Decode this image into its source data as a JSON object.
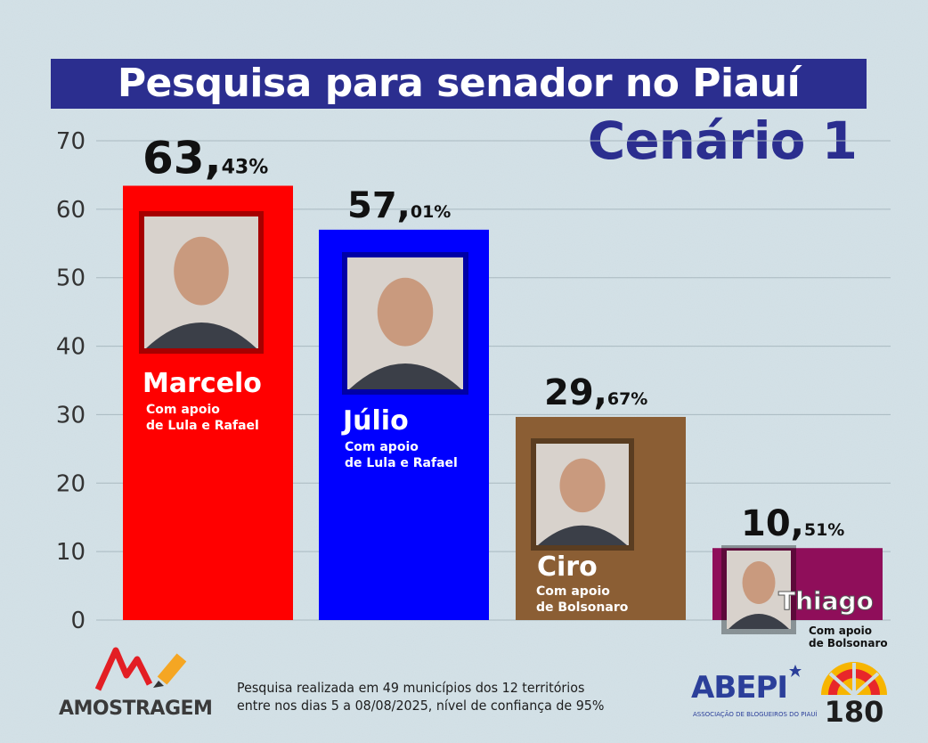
{
  "title": "Pesquisa para senador no Piauí",
  "subtitle": "Cenário 1",
  "chart_data": {
    "type": "bar",
    "ylim": [
      0,
      70
    ],
    "yticks": [
      0,
      10,
      20,
      30,
      40,
      50,
      60,
      70
    ],
    "grid": true,
    "categories": [
      "Marcelo",
      "Júlio",
      "Ciro",
      "Thiago"
    ],
    "values": [
      63.43,
      57.01,
      29.67,
      10.51
    ],
    "value_labels": [
      {
        "int": "63,",
        "dec": "43%"
      },
      {
        "int": "57,",
        "dec": "01%"
      },
      {
        "int": "29,",
        "dec": "67%"
      },
      {
        "int": "10,",
        "dec": "51%"
      }
    ],
    "support": [
      [
        "Com apoio",
        "de Lula e Rafael"
      ],
      [
        "Com apoio",
        "de Lula e Rafael"
      ],
      [
        "Com apoio",
        "de Bolsonaro"
      ],
      [
        "Com apoio",
        "de Bolsonaro"
      ]
    ],
    "colors": [
      "#ff0000",
      "#0000ff",
      "#8b5e34",
      "#8f0e5a"
    ]
  },
  "colors": {
    "banner": "#2b2e8f",
    "background": "#cfdde3"
  },
  "footer": {
    "note_line1": "Pesquisa realizada em 49 municípios dos 12 territórios",
    "note_line2": "entre nos dias 5 a 08/08/2025, nível de confiança de 95%",
    "logo_amostragem": "AMOSTRAGEM",
    "logo_abepi": "ABEPI",
    "logo_abepi_sub": "ASSOCIAÇÃO DE BLOGUEIROS DO PIAUÍ",
    "logo_180": "180"
  }
}
